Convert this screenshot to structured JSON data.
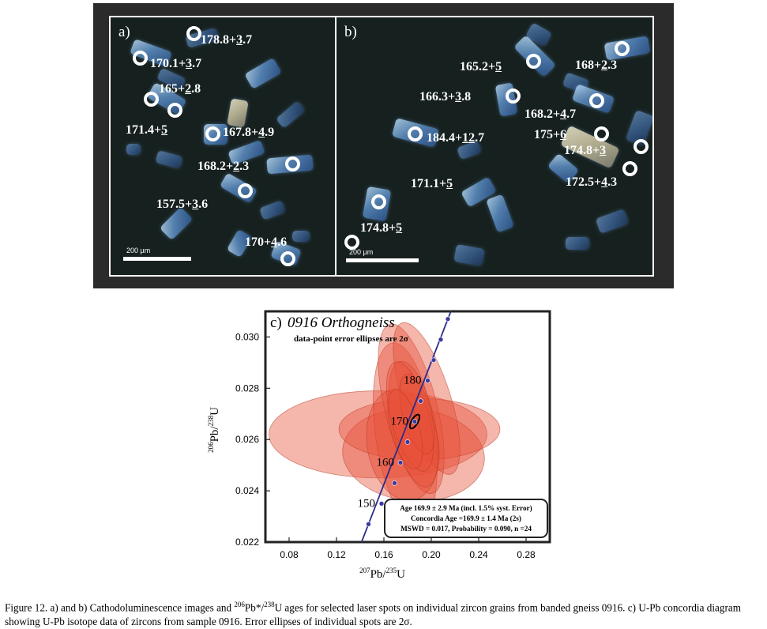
{
  "panel_a": {
    "tag": "a)",
    "ages": [
      {
        "value": "178.8+",
        "uval": "3",
        "tail": ".7"
      },
      {
        "value": "170.1+",
        "uval": "3",
        "tail": ".7"
      },
      {
        "value": "165+",
        "uval": "2",
        "tail": ".8"
      },
      {
        "value": "171.4+",
        "uval": "5",
        "tail": ""
      },
      {
        "value": "167.8+",
        "uval": "4",
        "tail": ".9"
      },
      {
        "value": "168.2+",
        "uval": "2",
        "tail": ".3"
      },
      {
        "value": "157.5+",
        "uval": "3",
        "tail": ".6"
      },
      {
        "value": "170+",
        "uval": "4",
        "tail": ".6"
      }
    ],
    "scale_label": "200  µm"
  },
  "panel_b": {
    "tag": "b)",
    "ages": [
      {
        "value": "165.2+",
        "uval": "5",
        "tail": ""
      },
      {
        "value": "168+",
        "uval": "2",
        "tail": ".3"
      },
      {
        "value": "166.3+",
        "uval": "3",
        "tail": ".8"
      },
      {
        "value": "168.2+",
        "uval": "4",
        "tail": ".7"
      },
      {
        "value": "184.4+",
        "uval": "12",
        "tail": ".7"
      },
      {
        "value": "175+",
        "uval": "6",
        "tail": ""
      },
      {
        "value": "174.8+",
        "uval": "3",
        "tail": ""
      },
      {
        "value": "172.5+",
        "uval": "4",
        "tail": ".3"
      },
      {
        "value": "171.1+",
        "uval": "5",
        "tail": ""
      },
      {
        "value": "174.8+",
        "uval": "5",
        "tail": ""
      }
    ],
    "scale_label": "200  µm"
  },
  "concordia": {
    "panel_label": "c)",
    "sample": "0916 Orthogneiss",
    "ellipse_note": "data-point error ellipses are 2σ",
    "age_box": [
      "Age 169.9 ± 2.9 Ma (incl. 1.5% syst. Error)",
      "Concordia Age =169.9 ± 1.4 Ma (2s)",
      "MSWD = 0.017, Probability = 0.090, n =24"
    ],
    "age_marks": [
      "150",
      "160",
      "170",
      "180"
    ],
    "colors": {
      "ellipse_fill": "#e8523a",
      "concordia_line": "#2c2c8c",
      "node": "#3a3aa0",
      "frame": "#222222"
    }
  },
  "chart_data": {
    "type": "scatter",
    "title": "0916 Orthogneiss",
    "xlabel": "207Pb/235U",
    "ylabel": "206Pb/238U",
    "xlim": [
      0.06,
      0.3
    ],
    "ylim": [
      0.022,
      0.031
    ],
    "xticks": [
      "0.08",
      "0.12",
      "0.16",
      "0.20",
      "0.24",
      "0.28"
    ],
    "yticks": [
      "0.022",
      "0.024",
      "0.026",
      "0.028",
      "0.030"
    ],
    "concordia_nodes": [
      {
        "x": 0.147,
        "y": 0.0227
      },
      {
        "x": 0.158,
        "y": 0.0235
      },
      {
        "x": 0.169,
        "y": 0.0243
      },
      {
        "x": 0.174,
        "y": 0.0251
      },
      {
        "x": 0.18,
        "y": 0.0259
      },
      {
        "x": 0.186,
        "y": 0.0267
      },
      {
        "x": 0.191,
        "y": 0.0275
      },
      {
        "x": 0.197,
        "y": 0.0283
      },
      {
        "x": 0.202,
        "y": 0.0291
      },
      {
        "x": 0.208,
        "y": 0.0299
      },
      {
        "x": 0.214,
        "y": 0.0307
      }
    ],
    "age_labels": [
      {
        "label": "150",
        "x": 0.158,
        "y": 0.0235
      },
      {
        "label": "160",
        "x": 0.174,
        "y": 0.0251
      },
      {
        "label": "170",
        "x": 0.186,
        "y": 0.0267
      },
      {
        "label": "180",
        "x": 0.197,
        "y": 0.0283
      }
    ],
    "ellipses": [
      {
        "cx": 0.155,
        "cy": 0.0262,
        "rx": 0.092,
        "ry": 0.0017,
        "rot": 0
      },
      {
        "cx": 0.185,
        "cy": 0.0254,
        "rx": 0.06,
        "ry": 0.0018,
        "rot": -5
      },
      {
        "cx": 0.19,
        "cy": 0.0264,
        "rx": 0.068,
        "ry": 0.0012,
        "rot": 0
      },
      {
        "cx": 0.178,
        "cy": 0.0262,
        "rx": 0.025,
        "ry": 0.0036,
        "rot": 8
      },
      {
        "cx": 0.183,
        "cy": 0.0272,
        "rx": 0.022,
        "ry": 0.0034,
        "rot": 14
      },
      {
        "cx": 0.196,
        "cy": 0.0276,
        "rx": 0.02,
        "ry": 0.0031,
        "rot": 18
      },
      {
        "cx": 0.176,
        "cy": 0.0258,
        "rx": 0.03,
        "ry": 0.0022,
        "rot": 10
      },
      {
        "cx": 0.185,
        "cy": 0.0266,
        "rx": 0.018,
        "ry": 0.0025,
        "rot": 12
      },
      {
        "cx": 0.182,
        "cy": 0.0269,
        "rx": 0.016,
        "ry": 0.0022,
        "rot": 15
      },
      {
        "cx": 0.188,
        "cy": 0.027,
        "rx": 0.012,
        "ry": 0.0016,
        "rot": 15
      },
      {
        "cx": 0.178,
        "cy": 0.0264,
        "rx": 0.012,
        "ry": 0.0016,
        "rot": 15
      }
    ],
    "mean_ellipse": {
      "cx": 0.186,
      "cy": 0.0267,
      "rx": 0.0022,
      "ry": 0.0003,
      "rot": 60
    }
  },
  "caption": {
    "fig": "Figure 12.",
    "p1": " a) and b) Cathodoluminescence images and ",
    "sup1": "206",
    "p2": "Pb*/",
    "sup2": "238",
    "p3": "U ages for selected laser spots on individual zircon grains from banded gneiss 0916. c) U-Pb concordia diagram showing U-Pb isotope data of zircons from sample 0916. Error ellipses of individual spots are 2σ."
  }
}
